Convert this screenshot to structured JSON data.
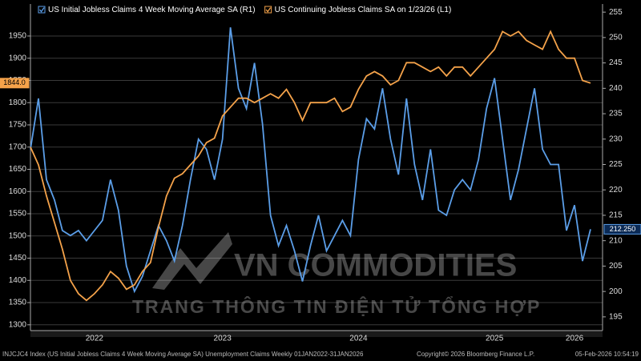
{
  "chart_data": {
    "type": "line",
    "legend": "top-left",
    "categories": [
      null,
      null,
      null,
      null,
      null,
      null,
      null,
      null,
      "2022",
      null,
      null,
      null,
      null,
      null,
      null,
      null,
      null,
      null,
      null,
      null,
      null,
      null,
      null,
      null,
      "2023",
      null,
      null,
      null,
      null,
      null,
      null,
      null,
      null,
      null,
      null,
      null,
      null,
      null,
      null,
      null,
      null,
      "2024",
      null,
      null,
      null,
      null,
      null,
      null,
      null,
      null,
      null,
      null,
      null,
      null,
      null,
      null,
      null,
      null,
      "2025",
      null,
      null,
      null,
      null,
      null,
      null,
      null,
      null,
      null,
      "2026",
      null,
      null
    ],
    "series": [
      {
        "name": "US Initial Jobless Claims 4 Week Moving Average SA  (R1)",
        "color": "#5b9ee8",
        "axis": "y2",
        "values": [
          228,
          238,
          222,
          218,
          212,
          211,
          212,
          210,
          212,
          214,
          222,
          216,
          205,
          200,
          203,
          208,
          213,
          210,
          206,
          213,
          222,
          230,
          228,
          222,
          230,
          252,
          240,
          236,
          245,
          233,
          215,
          209,
          213,
          208,
          202,
          209,
          215,
          208,
          211,
          214,
          211,
          226,
          234,
          232,
          240,
          230,
          223,
          238,
          225,
          218,
          228,
          216,
          215,
          220,
          222,
          220,
          226,
          236,
          242,
          230,
          218,
          224,
          232,
          240,
          228,
          225,
          225,
          212,
          217,
          206,
          212.25
        ],
        "value_labels": [
          null,
          null,
          null,
          null,
          null,
          null,
          null,
          null,
          null,
          null,
          null,
          null,
          null,
          null,
          null,
          null,
          null,
          null,
          null,
          null,
          null,
          null,
          null,
          null,
          null,
          null,
          null,
          null,
          null,
          null,
          null,
          null,
          null,
          null,
          null,
          null,
          null,
          null,
          null,
          null,
          null,
          null,
          null,
          null,
          null,
          null,
          null,
          null,
          null,
          null,
          null,
          null,
          null,
          null,
          null,
          null,
          null,
          null,
          null,
          null,
          null,
          null,
          null,
          null,
          null,
          null,
          null,
          null,
          null,
          null,
          "212.250"
        ]
      },
      {
        "name": "US Continuing Jobless Claims SA  on 1/23/26 (L1)",
        "color": "#f4a24a",
        "values": [
          1700,
          1660,
          1590,
          1530,
          1470,
          1400,
          1370,
          1355,
          1370,
          1390,
          1420,
          1405,
          1380,
          1390,
          1420,
          1440,
          1520,
          1590,
          1630,
          1640,
          1660,
          1680,
          1710,
          1720,
          1770,
          1790,
          1810,
          1810,
          1800,
          1810,
          1820,
          1810,
          1830,
          1800,
          1760,
          1800,
          1800,
          1800,
          1810,
          1780,
          1790,
          1830,
          1860,
          1870,
          1860,
          1840,
          1850,
          1890,
          1890,
          1880,
          1870,
          1880,
          1860,
          1880,
          1880,
          1860,
          1880,
          1900,
          1920,
          1960,
          1950,
          1960,
          1940,
          1930,
          1920,
          1960,
          1920,
          1900,
          1900,
          1850,
          1844
        ],
        "value_labels": [
          null,
          null,
          null,
          null,
          null,
          null,
          null,
          null,
          null,
          null,
          null,
          null,
          null,
          null,
          null,
          null,
          null,
          null,
          null,
          null,
          null,
          null,
          null,
          null,
          null,
          null,
          null,
          null,
          null,
          null,
          null,
          null,
          null,
          null,
          null,
          null,
          null,
          null,
          null,
          null,
          null,
          null,
          null,
          null,
          null,
          null,
          null,
          null,
          null,
          null,
          null,
          null,
          null,
          null,
          null,
          null,
          null,
          null,
          null,
          null,
          null,
          null,
          null,
          null,
          null,
          null,
          null,
          null,
          null,
          null,
          "1844.0"
        ]
      }
    ],
    "ylim": [
      1287,
      2022
    ],
    "yticks": [
      1300,
      1350,
      1400,
      1450,
      1500,
      1550,
      1600,
      1650,
      1700,
      1750,
      1800,
      1850,
      1900,
      1950
    ],
    "y2lim": [
      192.3,
      256.6
    ],
    "y2ticks": [
      195,
      200,
      205,
      210,
      215,
      220,
      225,
      230,
      235,
      240,
      245,
      250,
      255
    ],
    "grid": true,
    "watermark": {
      "title": "VN COMMODITIES",
      "subtitle": "TRANG THÔNG TIN ĐIỆN TỬ TỔNG HỢP"
    },
    "footer": {
      "left": "INJCJC4 Index (US Initial Jobless Claims 4 Week Moving Average SA) Unemployment Claims Weekly 01JAN2022-31JAN2026",
      "center": "Copyright© 2026 Bloomberg Finance L.P.",
      "right": "05-Feb-2026 10:54:19"
    }
  }
}
